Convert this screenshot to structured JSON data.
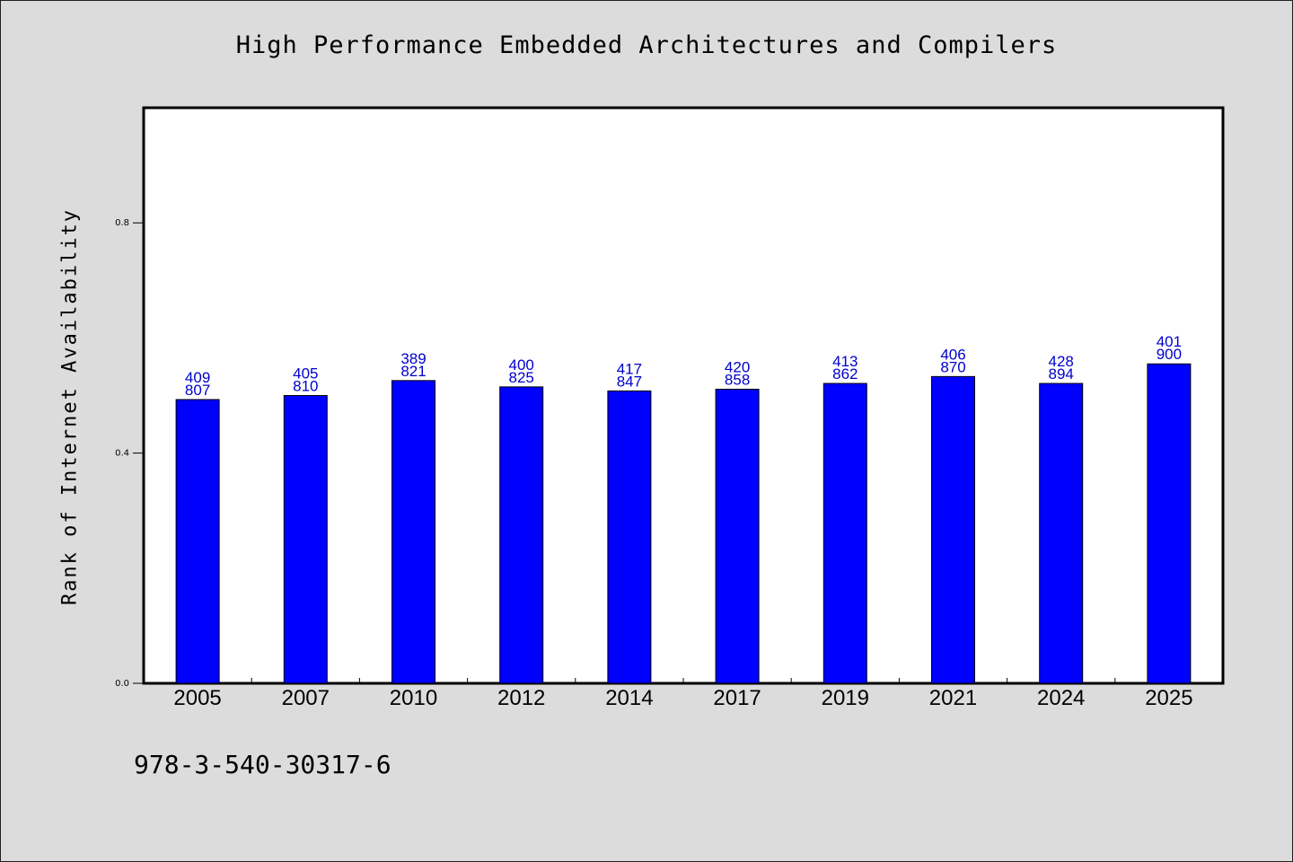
{
  "chart_data": {
    "type": "bar",
    "title": "High Performance Embedded Architectures and Compilers",
    "ylabel": "Rank of Internet Availability",
    "xlabel": "",
    "ylim": [
      0,
      1.0
    ],
    "yticks": [
      0.0,
      0.4,
      0.8
    ],
    "ytick_labels": [
      "0.0",
      "0.4",
      "0.8"
    ],
    "categories": [
      "2005",
      "2007",
      "2010",
      "2012",
      "2014",
      "2017",
      "2019",
      "2021",
      "2024",
      "2025"
    ],
    "values": [
      0.493,
      0.5,
      0.526,
      0.515,
      0.508,
      0.511,
      0.521,
      0.533,
      0.521,
      0.555
    ],
    "labels_top": [
      "409",
      "405",
      "389",
      "400",
      "417",
      "420",
      "413",
      "406",
      "428",
      "401"
    ],
    "labels_bottom": [
      "807",
      "810",
      "821",
      "825",
      "847",
      "858",
      "862",
      "870",
      "894",
      "900"
    ],
    "bar_color": "#0000ff",
    "label_color": "#0000cc",
    "grid": false,
    "legend": "none"
  },
  "footer": {
    "isbn": "978-3-540-30317-6"
  }
}
